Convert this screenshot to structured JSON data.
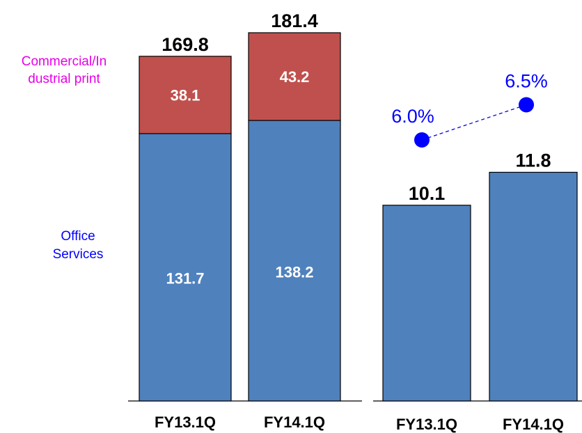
{
  "colors": {
    "office": "#4f81bd",
    "commercial": "#c0504d",
    "outline": "#000000",
    "margin_line": "#0000ff",
    "legend_commercial_text": "#e600e6",
    "legend_office_text": "#0000ff"
  },
  "legend": {
    "commercial_line1": "Commercial/In",
    "commercial_line2": "dustrial print",
    "office_line1": "Office",
    "office_line2": "Services"
  },
  "chart_data": [
    {
      "type": "bar",
      "stacked": true,
      "categories": [
        "FY13.1Q",
        "FY14.1Q"
      ],
      "series": [
        {
          "name": "Office Services",
          "values": [
            131.7,
            138.2
          ]
        },
        {
          "name": "Commercial/Industrial print",
          "values": [
            38.1,
            43.2
          ]
        }
      ],
      "totals": [
        169.8,
        181.4
      ],
      "value_labels": [
        "131.7",
        "138.2",
        "38.1",
        "43.2"
      ],
      "total_labels": [
        "169.8",
        "181.4"
      ],
      "ylim": [
        0,
        181.4
      ]
    },
    {
      "type": "bar",
      "categories": [
        "FY13.1Q",
        "FY14.1Q"
      ],
      "values": [
        10.1,
        11.8
      ],
      "value_labels": [
        "10.1",
        "11.8"
      ],
      "ylim": [
        0,
        19.0
      ],
      "line": {
        "values": [
          6.0,
          6.5
        ],
        "labels": [
          "6.0%",
          "6.5%"
        ],
        "style": "dashed"
      }
    }
  ]
}
